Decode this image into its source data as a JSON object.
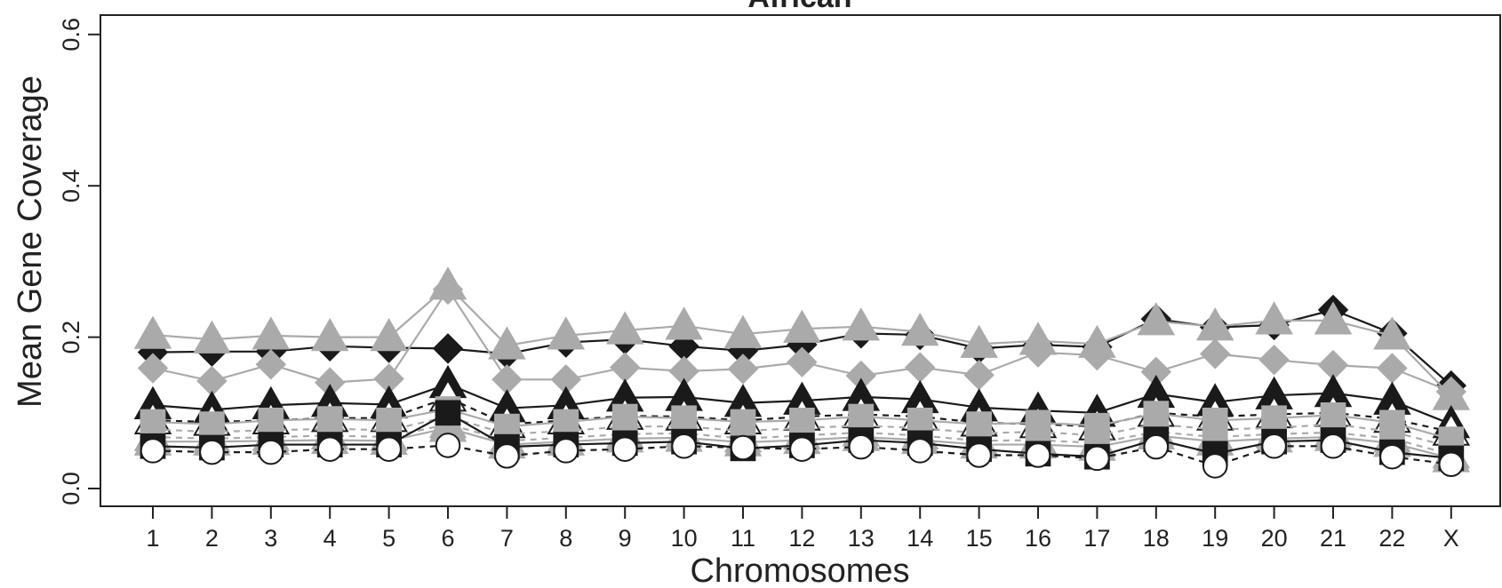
{
  "chart_data": {
    "type": "line",
    "title": "African",
    "xlabel": "Chromosomes",
    "ylabel": "Mean Gene Coverage",
    "ylim": [
      0,
      0.6
    ],
    "yticks": [
      "0.0",
      "0.2",
      "0.4",
      "0.6"
    ],
    "grid": false,
    "legend": "none",
    "categories": [
      "1",
      "2",
      "3",
      "4",
      "5",
      "6",
      "7",
      "8",
      "9",
      "10",
      "11",
      "12",
      "13",
      "14",
      "15",
      "16",
      "17",
      "18",
      "19",
      "20",
      "21",
      "22",
      "X"
    ],
    "series": [
      {
        "color": "#1a1a1a",
        "marker": "diamond",
        "dash": "solid",
        "values": [
          0.18,
          0.181,
          0.181,
          0.188,
          0.186,
          0.185,
          0.178,
          0.193,
          0.197,
          0.188,
          0.182,
          0.19,
          0.205,
          0.203,
          0.185,
          0.19,
          0.187,
          0.224,
          0.213,
          0.216,
          0.236,
          0.205,
          0.136
        ]
      },
      {
        "color": "#aaaaaa",
        "marker": "triangle",
        "dash": "solid",
        "values": [
          0.203,
          0.197,
          0.202,
          0.2,
          0.2,
          0.268,
          0.189,
          0.202,
          0.209,
          0.215,
          0.204,
          0.211,
          0.214,
          0.207,
          0.191,
          0.195,
          0.191,
          0.221,
          0.214,
          0.222,
          0.222,
          0.202,
          0.122
        ]
      },
      {
        "color": "#aaaaaa",
        "marker": "diamond",
        "dash": "solid",
        "values": [
          0.159,
          0.142,
          0.164,
          0.14,
          0.145,
          0.263,
          0.144,
          0.144,
          0.16,
          0.155,
          0.158,
          0.167,
          0.149,
          0.16,
          0.15,
          0.18,
          0.176,
          0.154,
          0.178,
          0.17,
          0.163,
          0.159,
          0.128
        ]
      },
      {
        "color": "#1a1a1a",
        "marker": "triangle",
        "dash": "solid",
        "values": [
          0.11,
          0.104,
          0.11,
          0.113,
          0.111,
          0.138,
          0.106,
          0.11,
          0.12,
          0.121,
          0.113,
          0.116,
          0.121,
          0.118,
          0.107,
          0.103,
          0.1,
          0.125,
          0.114,
          0.123,
          0.126,
          0.116,
          0.085
        ]
      },
      {
        "color": "#1a1a1a",
        "marker": "triangle-open",
        "dash": "dashed",
        "values": [
          0.09,
          0.088,
          0.09,
          0.093,
          0.093,
          0.12,
          0.085,
          0.09,
          0.096,
          0.095,
          0.09,
          0.095,
          0.098,
          0.095,
          0.087,
          0.085,
          0.082,
          0.1,
          0.095,
          0.098,
          0.1,
          0.092,
          0.075
        ]
      },
      {
        "color": "#aaaaaa",
        "marker": "square",
        "dash": "solid",
        "values": [
          0.088,
          0.085,
          0.09,
          0.092,
          0.09,
          0.105,
          0.082,
          0.088,
          0.095,
          0.093,
          0.088,
          0.09,
          0.095,
          0.09,
          0.085,
          0.087,
          0.083,
          0.099,
          0.09,
          0.093,
          0.097,
          0.087,
          0.065
        ]
      },
      {
        "color": "#aaaaaa",
        "marker": "square",
        "dash": "dashed",
        "values": [
          0.078,
          0.075,
          0.077,
          0.079,
          0.077,
          0.095,
          0.072,
          0.076,
          0.082,
          0.082,
          0.076,
          0.08,
          0.083,
          0.08,
          0.073,
          0.075,
          0.07,
          0.085,
          0.078,
          0.08,
          0.085,
          0.075,
          0.055
        ]
      },
      {
        "color": "#aaaaaa",
        "marker": "triangle",
        "dash": "dashed",
        "values": [
          0.068,
          0.066,
          0.068,
          0.07,
          0.068,
          0.085,
          0.063,
          0.067,
          0.072,
          0.073,
          0.066,
          0.07,
          0.074,
          0.07,
          0.063,
          0.064,
          0.06,
          0.075,
          0.068,
          0.072,
          0.074,
          0.066,
          0.045
        ]
      },
      {
        "color": "#aaaaaa",
        "marker": "triangle",
        "dash": "solid",
        "values": [
          0.062,
          0.062,
          0.063,
          0.064,
          0.063,
          0.08,
          0.058,
          0.062,
          0.066,
          0.067,
          0.061,
          0.064,
          0.068,
          0.064,
          0.058,
          0.058,
          0.055,
          0.07,
          0.062,
          0.066,
          0.068,
          0.06,
          0.04
        ]
      },
      {
        "color": "#1a1a1a",
        "marker": "square",
        "dash": "solid",
        "values": [
          0.056,
          0.054,
          0.058,
          0.058,
          0.058,
          0.1,
          0.055,
          0.058,
          0.06,
          0.062,
          0.053,
          0.057,
          0.064,
          0.06,
          0.052,
          0.046,
          0.042,
          0.065,
          0.046,
          0.062,
          0.064,
          0.048,
          0.04
        ]
      },
      {
        "color": "#1a1a1a",
        "marker": "circle-open",
        "dash": "dashed",
        "values": [
          0.05,
          0.048,
          0.048,
          0.052,
          0.052,
          0.057,
          0.043,
          0.05,
          0.052,
          0.056,
          0.054,
          0.052,
          0.055,
          0.05,
          0.044,
          0.044,
          0.04,
          0.055,
          0.03,
          0.056,
          0.056,
          0.042,
          0.032
        ]
      }
    ]
  }
}
